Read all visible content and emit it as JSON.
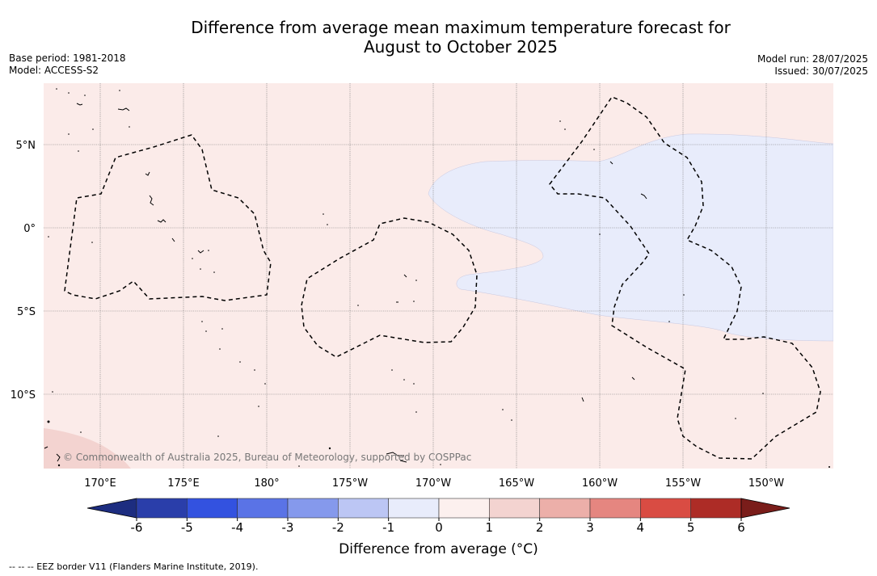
{
  "header": {
    "title_line1": "Difference from average mean maximum temperature forecast for",
    "title_line2": "August to October 2025",
    "base_period": "Base period: 1981-2018",
    "model": "Model: ACCESS-S2",
    "model_run": "Model run: 28/07/2025",
    "issued": "Issued: 30/07/2025"
  },
  "map": {
    "lon_labels": [
      "170°E",
      "175°E",
      "180°",
      "175°W",
      "170°W",
      "165°W",
      "160°W",
      "155°W",
      "150°W"
    ],
    "lat_labels": [
      "5°N",
      "0°",
      "5°S",
      "10°S"
    ],
    "copyright": "© Commonwealth of Australia 2025, Bureau of Meteorology, supported by COSPPac",
    "colors": {
      "background_anomaly": "#fbebe9",
      "cool_anomaly": "#e8ecfb",
      "warm_anomaly": "#f3d3d0",
      "eez_border": "#000000"
    }
  },
  "colorbar": {
    "ticks": [
      "-6",
      "-5",
      "-4",
      "-3",
      "-2",
      "-1",
      "0",
      "1",
      "2",
      "3",
      "4",
      "5",
      "6"
    ],
    "colors": [
      "#2a3eaa",
      "#3352e0",
      "#5a73e6",
      "#8599ec",
      "#bcc6f4",
      "#e8ecfb",
      "#fcf0ee",
      "#f3d3d0",
      "#ecafa9",
      "#e58680",
      "#d94c43",
      "#ad2c26"
    ],
    "extend_low_color": "#1d2d80",
    "extend_high_color": "#7a1d1a",
    "label": "Difference from average (°C)"
  },
  "footnote": "-- -- -- EEZ border V11 (Flanders Marine Institute, 2019)."
}
